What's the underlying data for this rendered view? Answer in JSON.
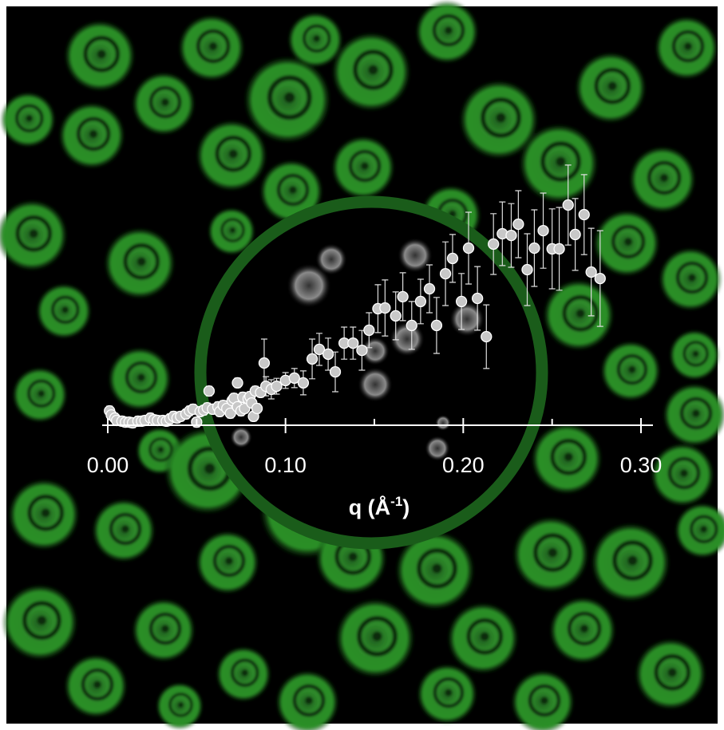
{
  "chart_data": {
    "type": "scatter",
    "xlabel": [
      "q (Å",
      "-1",
      ")"
    ],
    "xlim": [
      0,
      0.3
    ],
    "xticks": [
      {
        "value": 0,
        "label": "0.00"
      },
      {
        "value": 0.1,
        "label": "0.10"
      },
      {
        "value": 0.2,
        "label": "0.20"
      },
      {
        "value": 0.3,
        "label": "0.30"
      }
    ],
    "xminorticks": [
      0.05,
      0.15,
      0.25
    ],
    "ylim": [
      0,
      1
    ],
    "color": "#c8c8c8",
    "x": [
      0.001,
      0.002,
      0.004,
      0.005,
      0.008,
      0.01,
      0.012,
      0.014,
      0.017,
      0.019,
      0.021,
      0.024,
      0.026,
      0.028,
      0.031,
      0.033,
      0.035,
      0.037,
      0.039,
      0.041,
      0.044,
      0.046,
      0.048,
      0.05,
      0.052,
      0.054,
      0.056,
      0.057,
      0.059,
      0.062,
      0.063,
      0.065,
      0.067,
      0.069,
      0.07,
      0.071,
      0.073,
      0.073,
      0.075,
      0.076,
      0.077,
      0.079,
      0.08,
      0.081,
      0.082,
      0.083,
      0.084,
      0.086,
      0.088,
      0.089,
      0.092,
      0.095,
      0.1,
      0.105,
      0.11,
      0.115,
      0.119,
      0.124,
      0.128,
      0.133,
      0.138,
      0.143,
      0.147,
      0.152,
      0.156,
      0.162,
      0.166,
      0.171,
      0.176,
      0.181,
      0.185,
      0.19,
      0.194,
      0.199,
      0.203,
      0.208,
      0.213,
      0.217,
      0.222,
      0.227,
      0.231,
      0.236,
      0.24,
      0.245,
      0.25,
      0.254,
      0.259,
      0.263,
      0.268,
      0.272,
      0.277
    ],
    "values": [
      0.06,
      0.043,
      0.03,
      0.02,
      0.017,
      0.013,
      0.013,
      0.01,
      0.017,
      0.017,
      0.02,
      0.03,
      0.023,
      0.02,
      0.02,
      0.017,
      0.027,
      0.037,
      0.03,
      0.037,
      0.047,
      0.06,
      0.067,
      0.013,
      0.057,
      0.063,
      0.073,
      0.143,
      0.067,
      0.077,
      0.057,
      0.083,
      0.07,
      0.05,
      0.103,
      0.113,
      0.077,
      0.177,
      0.06,
      0.117,
      0.07,
      0.11,
      0.12,
      0.093,
      0.037,
      0.143,
      0.07,
      0.137,
      0.26,
      0.163,
      0.15,
      0.163,
      0.187,
      0.197,
      0.177,
      0.277,
      0.317,
      0.297,
      0.223,
      0.343,
      0.343,
      0.313,
      0.397,
      0.487,
      0.49,
      0.457,
      0.537,
      0.417,
      0.517,
      0.57,
      0.417,
      0.633,
      0.697,
      0.517,
      0.74,
      0.53,
      0.37,
      0.757,
      0.8,
      0.793,
      0.84,
      0.65,
      0.74,
      0.813,
      0.737,
      0.737,
      0.92,
      0.797,
      0.88,
      0.64,
      0.613
    ],
    "errors": [
      0.02,
      0.02,
      0.02,
      0.02,
      0.02,
      0.02,
      0.02,
      0.02,
      0.02,
      0.02,
      0.02,
      0.02,
      0.02,
      0.02,
      0.02,
      0.02,
      0.02,
      0.02,
      0.02,
      0.02,
      0.02,
      0.02,
      0.02,
      0.02,
      0.02,
      0.02,
      0.02,
      0.02,
      0.02,
      0.02,
      0.02,
      0.02,
      0.02,
      0.02,
      0.02,
      0.02,
      0.02,
      0.02,
      0.02,
      0.02,
      0.02,
      0.02,
      0.02,
      0.02,
      0.02,
      0.02,
      0.02,
      0.02,
      0.1,
      0.04,
      0.04,
      0.033,
      0.033,
      0.04,
      0.05,
      0.083,
      0.067,
      0.067,
      0.083,
      0.067,
      0.067,
      0.083,
      0.073,
      0.1,
      0.117,
      0.1,
      0.1,
      0.1,
      0.093,
      0.1,
      0.117,
      0.133,
      0.1,
      0.117,
      0.15,
      0.133,
      0.133,
      0.127,
      0.133,
      0.133,
      0.14,
      0.15,
      0.16,
      0.157,
      0.167,
      0.173,
      0.167,
      0.15,
      0.167,
      0.183,
      0.2
    ]
  }
}
